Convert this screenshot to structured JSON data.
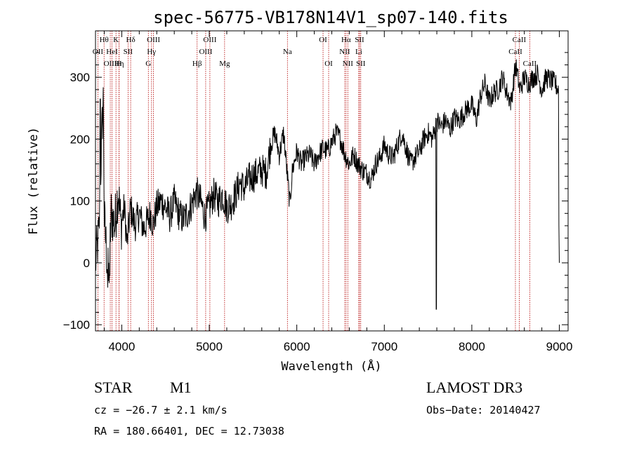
{
  "chart_data": {
    "type": "line",
    "title": "spec-56775-VB178N14V1_sp07-140.fits",
    "xlabel": "Wavelength (Å)",
    "ylabel": "Flux (relative)",
    "xlim": [
      3700,
      9100
    ],
    "ylim": [
      -110,
      375
    ],
    "x_ticks": [
      4000,
      5000,
      6000,
      7000,
      8000,
      9000
    ],
    "y_ticks": [
      -100,
      0,
      100,
      200,
      300
    ],
    "series": [
      {
        "name": "flux",
        "anchors": [
          [
            3700,
            0
          ],
          [
            3740,
            50
          ],
          [
            3770,
            200
          ],
          [
            3790,
            270
          ],
          [
            3800,
            70
          ],
          [
            3830,
            10
          ],
          [
            3850,
            -30
          ],
          [
            3880,
            80
          ],
          [
            3920,
            60
          ],
          [
            3960,
            120
          ],
          [
            3990,
            60
          ],
          [
            4030,
            90
          ],
          [
            4060,
            30
          ],
          [
            4100,
            90
          ],
          [
            4150,
            60
          ],
          [
            4200,
            80
          ],
          [
            4250,
            55
          ],
          [
            4300,
            70
          ],
          [
            4330,
            80
          ],
          [
            4360,
            60
          ],
          [
            4400,
            90
          ],
          [
            4450,
            100
          ],
          [
            4500,
            90
          ],
          [
            4550,
            75
          ],
          [
            4600,
            100
          ],
          [
            4650,
            80
          ],
          [
            4700,
            70
          ],
          [
            4750,
            80
          ],
          [
            4800,
            95
          ],
          [
            4850,
            115
          ],
          [
            4900,
            100
          ],
          [
            4950,
            75
          ],
          [
            5000,
            90
          ],
          [
            5050,
            110
          ],
          [
            5100,
            100
          ],
          [
            5150,
            110
          ],
          [
            5200,
            90
          ],
          [
            5250,
            95
          ],
          [
            5300,
            110
          ],
          [
            5350,
            130
          ],
          [
            5400,
            120
          ],
          [
            5450,
            135
          ],
          [
            5500,
            140
          ],
          [
            5550,
            145
          ],
          [
            5600,
            150
          ],
          [
            5650,
            145
          ],
          [
            5700,
            190
          ],
          [
            5750,
            210
          ],
          [
            5800,
            175
          ],
          [
            5850,
            210
          ],
          [
            5880,
            160
          ],
          [
            5920,
            95
          ],
          [
            5950,
            150
          ],
          [
            6000,
            180
          ],
          [
            6050,
            160
          ],
          [
            6100,
            170
          ],
          [
            6150,
            175
          ],
          [
            6200,
            160
          ],
          [
            6250,
            175
          ],
          [
            6300,
            185
          ],
          [
            6350,
            180
          ],
          [
            6400,
            195
          ],
          [
            6450,
            210
          ],
          [
            6500,
            200
          ],
          [
            6550,
            175
          ],
          [
            6600,
            160
          ],
          [
            6650,
            175
          ],
          [
            6700,
            160
          ],
          [
            6750,
            150
          ],
          [
            6800,
            145
          ],
          [
            6850,
            135
          ],
          [
            6900,
            160
          ],
          [
            6950,
            170
          ],
          [
            7000,
            190
          ],
          [
            7050,
            175
          ],
          [
            7100,
            170
          ],
          [
            7150,
            190
          ],
          [
            7200,
            210
          ],
          [
            7250,
            185
          ],
          [
            7300,
            160
          ],
          [
            7350,
            170
          ],
          [
            7400,
            180
          ],
          [
            7450,
            200
          ],
          [
            7500,
            210
          ],
          [
            7550,
            200
          ],
          [
            7600,
            230
          ],
          [
            7650,
            220
          ],
          [
            7700,
            230
          ],
          [
            7750,
            215
          ],
          [
            7800,
            235
          ],
          [
            7850,
            230
          ],
          [
            7900,
            240
          ],
          [
            7950,
            250
          ],
          [
            8000,
            255
          ],
          [
            8050,
            230
          ],
          [
            8100,
            270
          ],
          [
            8150,
            290
          ],
          [
            8200,
            260
          ],
          [
            8250,
            275
          ],
          [
            8300,
            280
          ],
          [
            8350,
            300
          ],
          [
            8400,
            275
          ],
          [
            8450,
            260
          ],
          [
            8500,
            320
          ],
          [
            8550,
            280
          ],
          [
            8600,
            300
          ],
          [
            8650,
            290
          ],
          [
            8700,
            300
          ],
          [
            8750,
            305
          ],
          [
            8800,
            280
          ],
          [
            8850,
            300
          ],
          [
            8900,
            295
          ],
          [
            8950,
            290
          ],
          [
            8990,
            280
          ],
          [
            8995,
            60
          ],
          [
            9000,
            0
          ]
        ],
        "spikes": [
          [
            7595,
            -75
          ],
          [
            3755,
            265
          ],
          [
            3840,
            -40
          ],
          [
            3862,
            -20
          ]
        ]
      }
    ],
    "lines": [
      {
        "label": "Hθ",
        "x": 3798,
        "row": 0
      },
      {
        "label": "OII",
        "x": 3727,
        "row": 1
      },
      {
        "label": "OIII",
        "x": 3869,
        "row": 2
      },
      {
        "label": "HeI",
        "x": 3889,
        "row": 1
      },
      {
        "label": "Hη",
        "x": 3970,
        "row": 2
      },
      {
        "label": "K",
        "x": 3934,
        "row": 0
      },
      {
        "label": "H",
        "x": 3969,
        "row": 2
      },
      {
        "label": "SII",
        "x": 4072,
        "row": 1
      },
      {
        "label": "Hδ",
        "x": 4102,
        "row": 0
      },
      {
        "label": "OIII",
        "x": 4363,
        "row": 0
      },
      {
        "label": "Hγ",
        "x": 4340,
        "row": 1
      },
      {
        "label": "G",
        "x": 4304,
        "row": 2
      },
      {
        "label": "Hβ",
        "x": 4861,
        "row": 2
      },
      {
        "label": "OIII",
        "x": 5007,
        "row": 0
      },
      {
        "label": "OIII",
        "x": 4959,
        "row": 1
      },
      {
        "label": "Mg",
        "x": 5175,
        "row": 2
      },
      {
        "label": "Na",
        "x": 5893,
        "row": 1
      },
      {
        "label": "OI",
        "x": 6300,
        "row": 0
      },
      {
        "label": "OI",
        "x": 6364,
        "row": 2
      },
      {
        "label": "Hα",
        "x": 6563,
        "row": 0
      },
      {
        "label": "NII",
        "x": 6548,
        "row": 1
      },
      {
        "label": "NII",
        "x": 6583,
        "row": 2
      },
      {
        "label": "SII",
        "x": 6717,
        "row": 0
      },
      {
        "label": "Li",
        "x": 6708,
        "row": 1
      },
      {
        "label": "SII",
        "x": 6731,
        "row": 2
      },
      {
        "label": "CaII",
        "x": 8542,
        "row": 0
      },
      {
        "label": "CaII",
        "x": 8498,
        "row": 1
      },
      {
        "label": "CaII",
        "x": 8662,
        "row": 2
      }
    ]
  },
  "info": {
    "star_type": "STAR",
    "subclass": "M1",
    "survey": "LAMOST DR3",
    "cz": "cz = −26.7 ± 2.1 km/s",
    "obs_date": "Obs−Date: 20140427",
    "coords": "RA = 180.66401, DEC =  12.73038"
  },
  "colors": {
    "line_markers": "#b30000",
    "spectrum": "#000000"
  }
}
